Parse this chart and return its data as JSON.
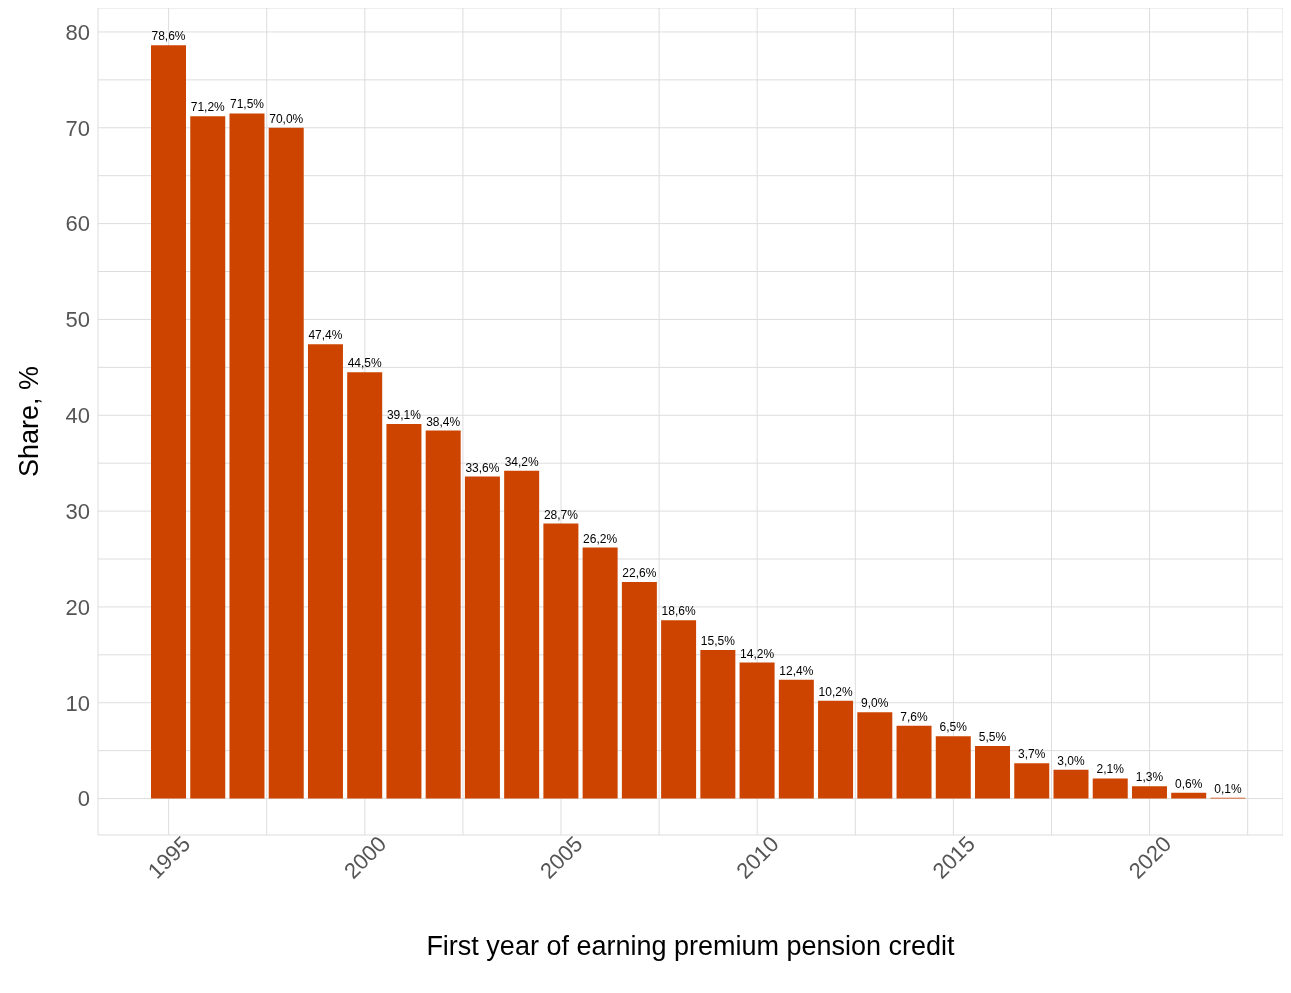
{
  "chart_data": {
    "type": "bar",
    "xlabel": "First year of earning premium pension credit",
    "ylabel": "Share, %",
    "x": [
      1995,
      1996,
      1997,
      1998,
      1999,
      2000,
      2001,
      2002,
      2003,
      2004,
      2005,
      2006,
      2007,
      2008,
      2009,
      2010,
      2011,
      2012,
      2013,
      2014,
      2015,
      2016,
      2017,
      2018,
      2019,
      2020,
      2021,
      2022
    ],
    "values": [
      78.6,
      71.2,
      71.5,
      70.0,
      47.4,
      44.5,
      39.1,
      38.4,
      33.6,
      34.2,
      28.7,
      26.2,
      22.6,
      18.6,
      15.5,
      14.2,
      12.4,
      10.2,
      9.0,
      7.6,
      6.5,
      5.5,
      3.7,
      3.0,
      2.1,
      1.3,
      0.6,
      0.1
    ],
    "value_labels": [
      "78,6%",
      "71,2%",
      "71,5%",
      "70,0%",
      "47,4%",
      "44,5%",
      "39,1%",
      "38,4%",
      "33,6%",
      "34,2%",
      "28,7%",
      "26,2%",
      "22,6%",
      "18,6%",
      "15,5%",
      "14,2%",
      "12,4%",
      "10,2%",
      "9,0%",
      "7,6%",
      "6,5%",
      "5,5%",
      "3,7%",
      "3,0%",
      "2,1%",
      "1,3%",
      "0,6%",
      "0,1%"
    ],
    "color": "#cc4400",
    "xlim": [
      1993.2,
      2023.4
    ],
    "xticks": [
      1995,
      {
        "value": 1997.5,
        "label": null
      },
      2000,
      {
        "value": 2002.5,
        "label": null
      },
      2005,
      {
        "value": 2007.5,
        "label": null
      },
      2010,
      {
        "value": 2012.5,
        "label": null
      },
      2015,
      {
        "value": 2017.5,
        "label": null
      },
      2020,
      {
        "value": 2022.5,
        "label": null
      }
    ],
    "ylim": [
      -3.8,
      82.5
    ],
    "yticks": [
      0,
      {
        "value": 5,
        "label": null
      },
      10,
      {
        "value": 15,
        "label": null
      },
      20,
      {
        "value": 25,
        "label": null
      },
      30,
      {
        "value": 35,
        "label": null
      },
      40,
      {
        "value": 45,
        "label": null
      },
      50,
      {
        "value": 55,
        "label": null
      },
      60,
      {
        "value": 65,
        "label": null
      },
      70,
      {
        "value": 75,
        "label": null
      },
      80
    ],
    "grid": true
  }
}
